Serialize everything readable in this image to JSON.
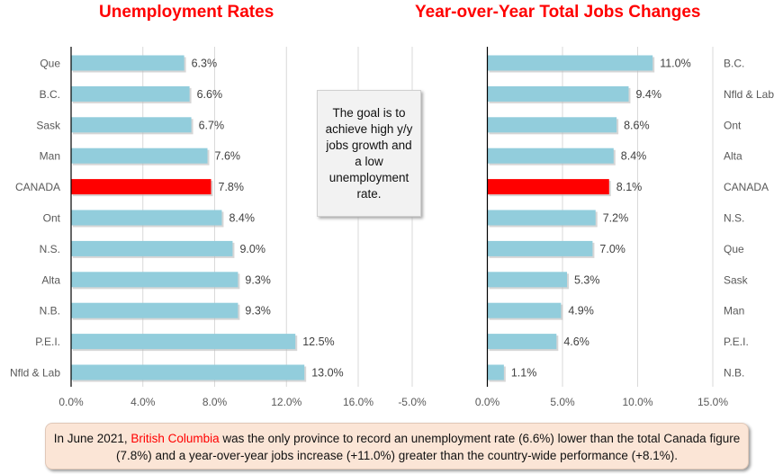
{
  "chart_data": [
    {
      "type": "bar",
      "orientation": "horizontal",
      "title": "Unemployment Rates",
      "categories": [
        "Que",
        "B.C.",
        "Sask",
        "Man",
        "CANADA",
        "Ont",
        "N.S.",
        "Alta",
        "N.B.",
        "P.E.I.",
        "Nfld & Lab"
      ],
      "values": [
        6.3,
        6.6,
        6.7,
        7.6,
        7.8,
        8.4,
        9.0,
        9.3,
        9.3,
        12.5,
        13.0
      ],
      "data_labels": [
        "6.3%",
        "6.6%",
        "6.7%",
        "7.6%",
        "7.8%",
        "8.4%",
        "9.0%",
        "9.3%",
        "9.3%",
        "12.5%",
        "13.0%"
      ],
      "xlim": [
        0,
        16
      ],
      "xticks": [
        "0.0%",
        "4.0%",
        "8.0%",
        "12.0%",
        "16.0%"
      ],
      "grid": true,
      "label_side": "left"
    },
    {
      "type": "bar",
      "orientation": "horizontal",
      "title": "Year-over-Year Total Jobs Changes",
      "categories": [
        "B.C.",
        "Nfld & Lab",
        "Ont",
        "Alta",
        "CANADA",
        "N.S.",
        "Que",
        "Sask",
        "Man",
        "P.E.I.",
        "N.B."
      ],
      "values": [
        11.0,
        9.4,
        8.6,
        8.4,
        8.1,
        7.2,
        7.0,
        5.3,
        4.9,
        4.6,
        1.1
      ],
      "data_labels": [
        "11.0%",
        "9.4%",
        "8.6%",
        "8.4%",
        "8.1%",
        "7.2%",
        "7.0%",
        "5.3%",
        "4.9%",
        "4.6%",
        "1.1%"
      ],
      "xlim": [
        -5,
        15
      ],
      "xticks": [
        "-5.0%",
        "0.0%",
        "5.0%",
        "10.0%",
        "15.0%"
      ],
      "grid": true,
      "label_side": "right"
    }
  ],
  "colors": {
    "bar": "#92cddc",
    "highlight": "#ff0000",
    "title": "#ff0000"
  },
  "callout": "The goal is to achieve high y/y jobs growth and a low unemployment rate.",
  "note": {
    "pre": "In June 2021, ",
    "highlight": "British Columbia",
    "post": " was the only province to record an unemployment rate (6.6%) lower than the total Canada figure (7.8%) and a year-over-year jobs increase (+11.0%) greater than the country-wide performance (+8.1%)."
  }
}
